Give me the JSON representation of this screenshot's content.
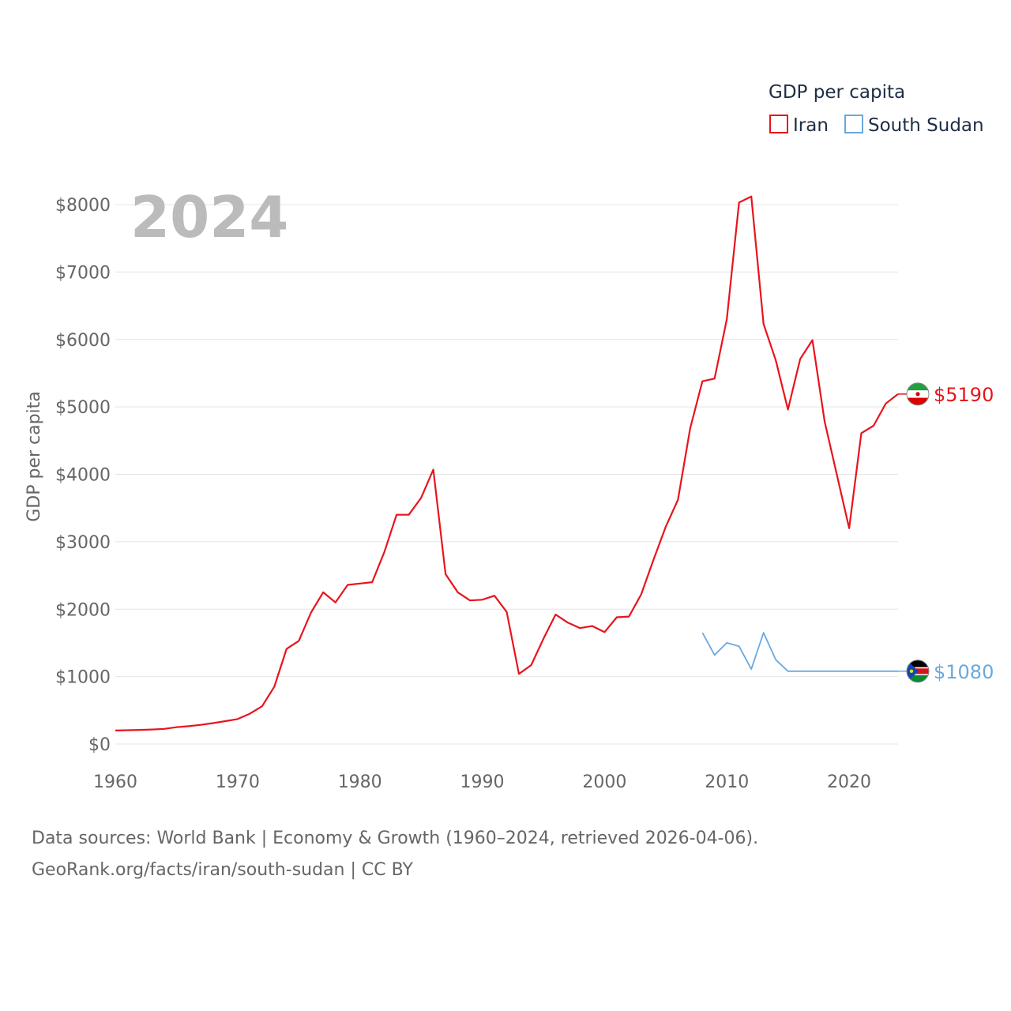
{
  "chart_data": {
    "type": "line",
    "year_label": "2024",
    "ylabel": "GDP per capita",
    "legend": {
      "title": "GDP per capita",
      "placement": "top-right"
    },
    "xlim": [
      1960,
      2024
    ],
    "ylim": [
      0,
      8000
    ],
    "x_ticks": [
      1960,
      1970,
      1980,
      1990,
      2000,
      2010,
      2020
    ],
    "y_ticks": [
      0,
      1000,
      2000,
      3000,
      4000,
      5000,
      6000,
      7000,
      8000
    ],
    "y_tick_labels": [
      "$0",
      "$1000",
      "$2000",
      "$3000",
      "$4000",
      "$5000",
      "$6000",
      "$7000",
      "$8000"
    ],
    "grid": true,
    "series": [
      {
        "name": "Iran",
        "color": "#e8141c",
        "end_label": "$5190",
        "flag_icon": "iran-flag-icon",
        "x": [
          1960,
          1961,
          1962,
          1963,
          1964,
          1965,
          1966,
          1967,
          1968,
          1969,
          1970,
          1971,
          1972,
          1973,
          1974,
          1975,
          1976,
          1977,
          1978,
          1979,
          1980,
          1981,
          1982,
          1983,
          1984,
          1985,
          1986,
          1987,
          1988,
          1989,
          1990,
          1991,
          1992,
          1993,
          1994,
          1995,
          1996,
          1997,
          1998,
          1999,
          2000,
          2001,
          2002,
          2003,
          2004,
          2005,
          2006,
          2007,
          2008,
          2009,
          2010,
          2011,
          2012,
          2013,
          2014,
          2015,
          2016,
          2017,
          2018,
          2019,
          2020,
          2021,
          2022,
          2023,
          2024
        ],
        "values": [
          200,
          205,
          210,
          215,
          225,
          250,
          265,
          285,
          310,
          340,
          370,
          450,
          560,
          850,
          1410,
          1530,
          1950,
          2250,
          2100,
          2360,
          2380,
          2400,
          2850,
          3400,
          3400,
          3650,
          4070,
          2520,
          2250,
          2130,
          2140,
          2200,
          1960,
          1040,
          1170,
          1560,
          1920,
          1800,
          1720,
          1750,
          1660,
          1880,
          1890,
          2220,
          2730,
          3220,
          3620,
          4680,
          5380,
          5420,
          6300,
          8030,
          8120,
          6230,
          5690,
          4960,
          5710,
          5990,
          4780,
          3990,
          3200,
          4610,
          4720,
          5050,
          5190
        ]
      },
      {
        "name": "South Sudan",
        "color": "#6aa9e0",
        "end_label": "$1080",
        "flag_icon": "south-sudan-flag-icon",
        "x": [
          2008,
          2009,
          2010,
          2011,
          2012,
          2013,
          2014,
          2015,
          2016,
          2017,
          2018,
          2019,
          2020,
          2021,
          2022,
          2023,
          2024
        ],
        "values": [
          1650,
          1320,
          1500,
          1450,
          1110,
          1650,
          1250,
          1080,
          1080,
          1080,
          1080,
          1080,
          1080,
          1080,
          1080,
          1080,
          1080
        ]
      }
    ]
  },
  "footer": {
    "source_line": "Data sources: World Bank | Economy & Growth (1960–2024, retrieved 2026-04-06).",
    "credit_line": "GeoRank.org/facts/iran/south-sudan | CC BY"
  }
}
